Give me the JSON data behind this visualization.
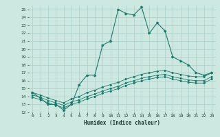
{
  "title": "",
  "xlabel": "Humidex (Indice chaleur)",
  "bg_color": "#cce8e0",
  "grid_color": "#aacfc8",
  "line_color": "#1a7a6a",
  "xlim": [
    -0.5,
    23.5
  ],
  "ylim": [
    12,
    25.5
  ],
  "yticks": [
    12,
    13,
    14,
    15,
    16,
    17,
    18,
    19,
    20,
    21,
    22,
    23,
    24,
    25
  ],
  "xticks": [
    0,
    1,
    2,
    3,
    4,
    5,
    6,
    7,
    8,
    9,
    10,
    11,
    12,
    13,
    14,
    15,
    16,
    17,
    18,
    19,
    20,
    21,
    22,
    23
  ],
  "series1_x": [
    0,
    1,
    2,
    3,
    4,
    5,
    6,
    7,
    8,
    9,
    10,
    11,
    12,
    13,
    14,
    15,
    16,
    17,
    18,
    19,
    20,
    21,
    22,
    23
  ],
  "series1_y": [
    14.5,
    13.8,
    13.0,
    13.0,
    12.3,
    13.0,
    15.5,
    16.7,
    16.7,
    20.5,
    21.0,
    25.0,
    24.5,
    24.3,
    25.3,
    22.0,
    23.3,
    22.3,
    19.0,
    18.5,
    18.0,
    17.0,
    16.7,
    17.0
  ],
  "series2_x": [
    0,
    1,
    2,
    3,
    4,
    5,
    6,
    7,
    8,
    9,
    10,
    11,
    12,
    13,
    14,
    15,
    16,
    17,
    18,
    19,
    20,
    21,
    22,
    23
  ],
  "series2_y": [
    14.5,
    14.2,
    13.8,
    13.5,
    13.2,
    13.7,
    14.0,
    14.5,
    14.8,
    15.2,
    15.5,
    15.8,
    16.2,
    16.5,
    16.8,
    17.0,
    17.2,
    17.3,
    17.0,
    16.8,
    16.6,
    16.5,
    16.5,
    17.0
  ],
  "series3_x": [
    0,
    1,
    2,
    3,
    4,
    5,
    6,
    7,
    8,
    9,
    10,
    11,
    12,
    13,
    14,
    15,
    16,
    17,
    18,
    19,
    20,
    21,
    22,
    23
  ],
  "series3_y": [
    14.2,
    13.9,
    13.5,
    13.2,
    12.9,
    13.3,
    13.6,
    14.0,
    14.3,
    14.7,
    15.0,
    15.3,
    15.7,
    16.0,
    16.3,
    16.5,
    16.7,
    16.8,
    16.5,
    16.3,
    16.1,
    16.0,
    16.0,
    16.5
  ],
  "series4_x": [
    0,
    1,
    2,
    3,
    4,
    5,
    6,
    7,
    8,
    9,
    10,
    11,
    12,
    13,
    14,
    15,
    16,
    17,
    18,
    19,
    20,
    21,
    22,
    23
  ],
  "series4_y": [
    13.9,
    13.6,
    13.2,
    12.9,
    12.6,
    13.0,
    13.3,
    13.7,
    14.0,
    14.4,
    14.7,
    15.0,
    15.4,
    15.7,
    16.0,
    16.2,
    16.4,
    16.5,
    16.2,
    16.0,
    15.8,
    15.7,
    15.7,
    16.2
  ]
}
